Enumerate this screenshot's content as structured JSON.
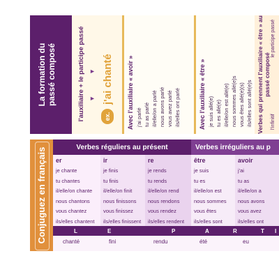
{
  "top_card": {
    "title_lines": [
      "La formation du",
      "passé composé"
    ],
    "formula": "l'auxiliaire + le participe passé",
    "example_badge": "ex.",
    "example_text": "j'ai chanté",
    "avoir_header": "Avec l'auxiliaire « avoir »",
    "avoir_lines": [
      "j'ai parlé",
      "tu as parlé",
      "il/elle/on a parlé",
      "nous avons parlé",
      "vous avez parlé",
      "ils/elles ont parlé"
    ],
    "etre_header": "Avec l'auxiliaire « être »",
    "etre_lines": [
      "je suis allé(e)",
      "tu es allé(e)",
      "il/elle/on est allé(e)",
      "nous sommes allé(e)s",
      "vous êtes allé(e)(s)",
      "ils/elles sont allé(e)s"
    ],
    "right_title": "Verbes qui prennent l'auxiliaire « être » au passé composé",
    "right_sub_left": "l'infinitif",
    "right_sub_right": "le participe passé"
  },
  "bottom_card": {
    "side_title": "Conjuguez en français",
    "header_regular": "Verbes réguliers au présent",
    "header_irregular": "Verbes irréguliers au p",
    "participle_letters": [
      "L",
      "E",
      "P",
      "A",
      "R",
      "T",
      "I"
    ],
    "columns": [
      {
        "head": "er",
        "rows": [
          "je chante",
          "tu chantes",
          "il/elle/on chante",
          "nous chantons",
          "vous chantez",
          "ils/elles chantent"
        ],
        "pp": "chanté"
      },
      {
        "head": "ir",
        "rows": [
          "je finis",
          "tu finis",
          "il/elle/on finit",
          "nous finissons",
          "vous finissez",
          "ils/elles finissent"
        ],
        "pp": "fini"
      },
      {
        "head": "re",
        "rows": [
          "je rends",
          "tu rends",
          "il/elle/on rend",
          "nous rendons",
          "vous rendez",
          "ils/elles rendent"
        ],
        "pp": "rendu"
      },
      {
        "head": "être",
        "rows": [
          "je suis",
          "tu es",
          "il/elle/on est",
          "nous sommes",
          "vous êtes",
          "ils/elles sont"
        ],
        "pp": "été"
      },
      {
        "head": "avoir",
        "rows": [
          "j'ai",
          "tu as",
          "il/elle/on a",
          "nous avons",
          "vous avez",
          "ils/elles ont"
        ],
        "pp": "eu"
      }
    ]
  }
}
